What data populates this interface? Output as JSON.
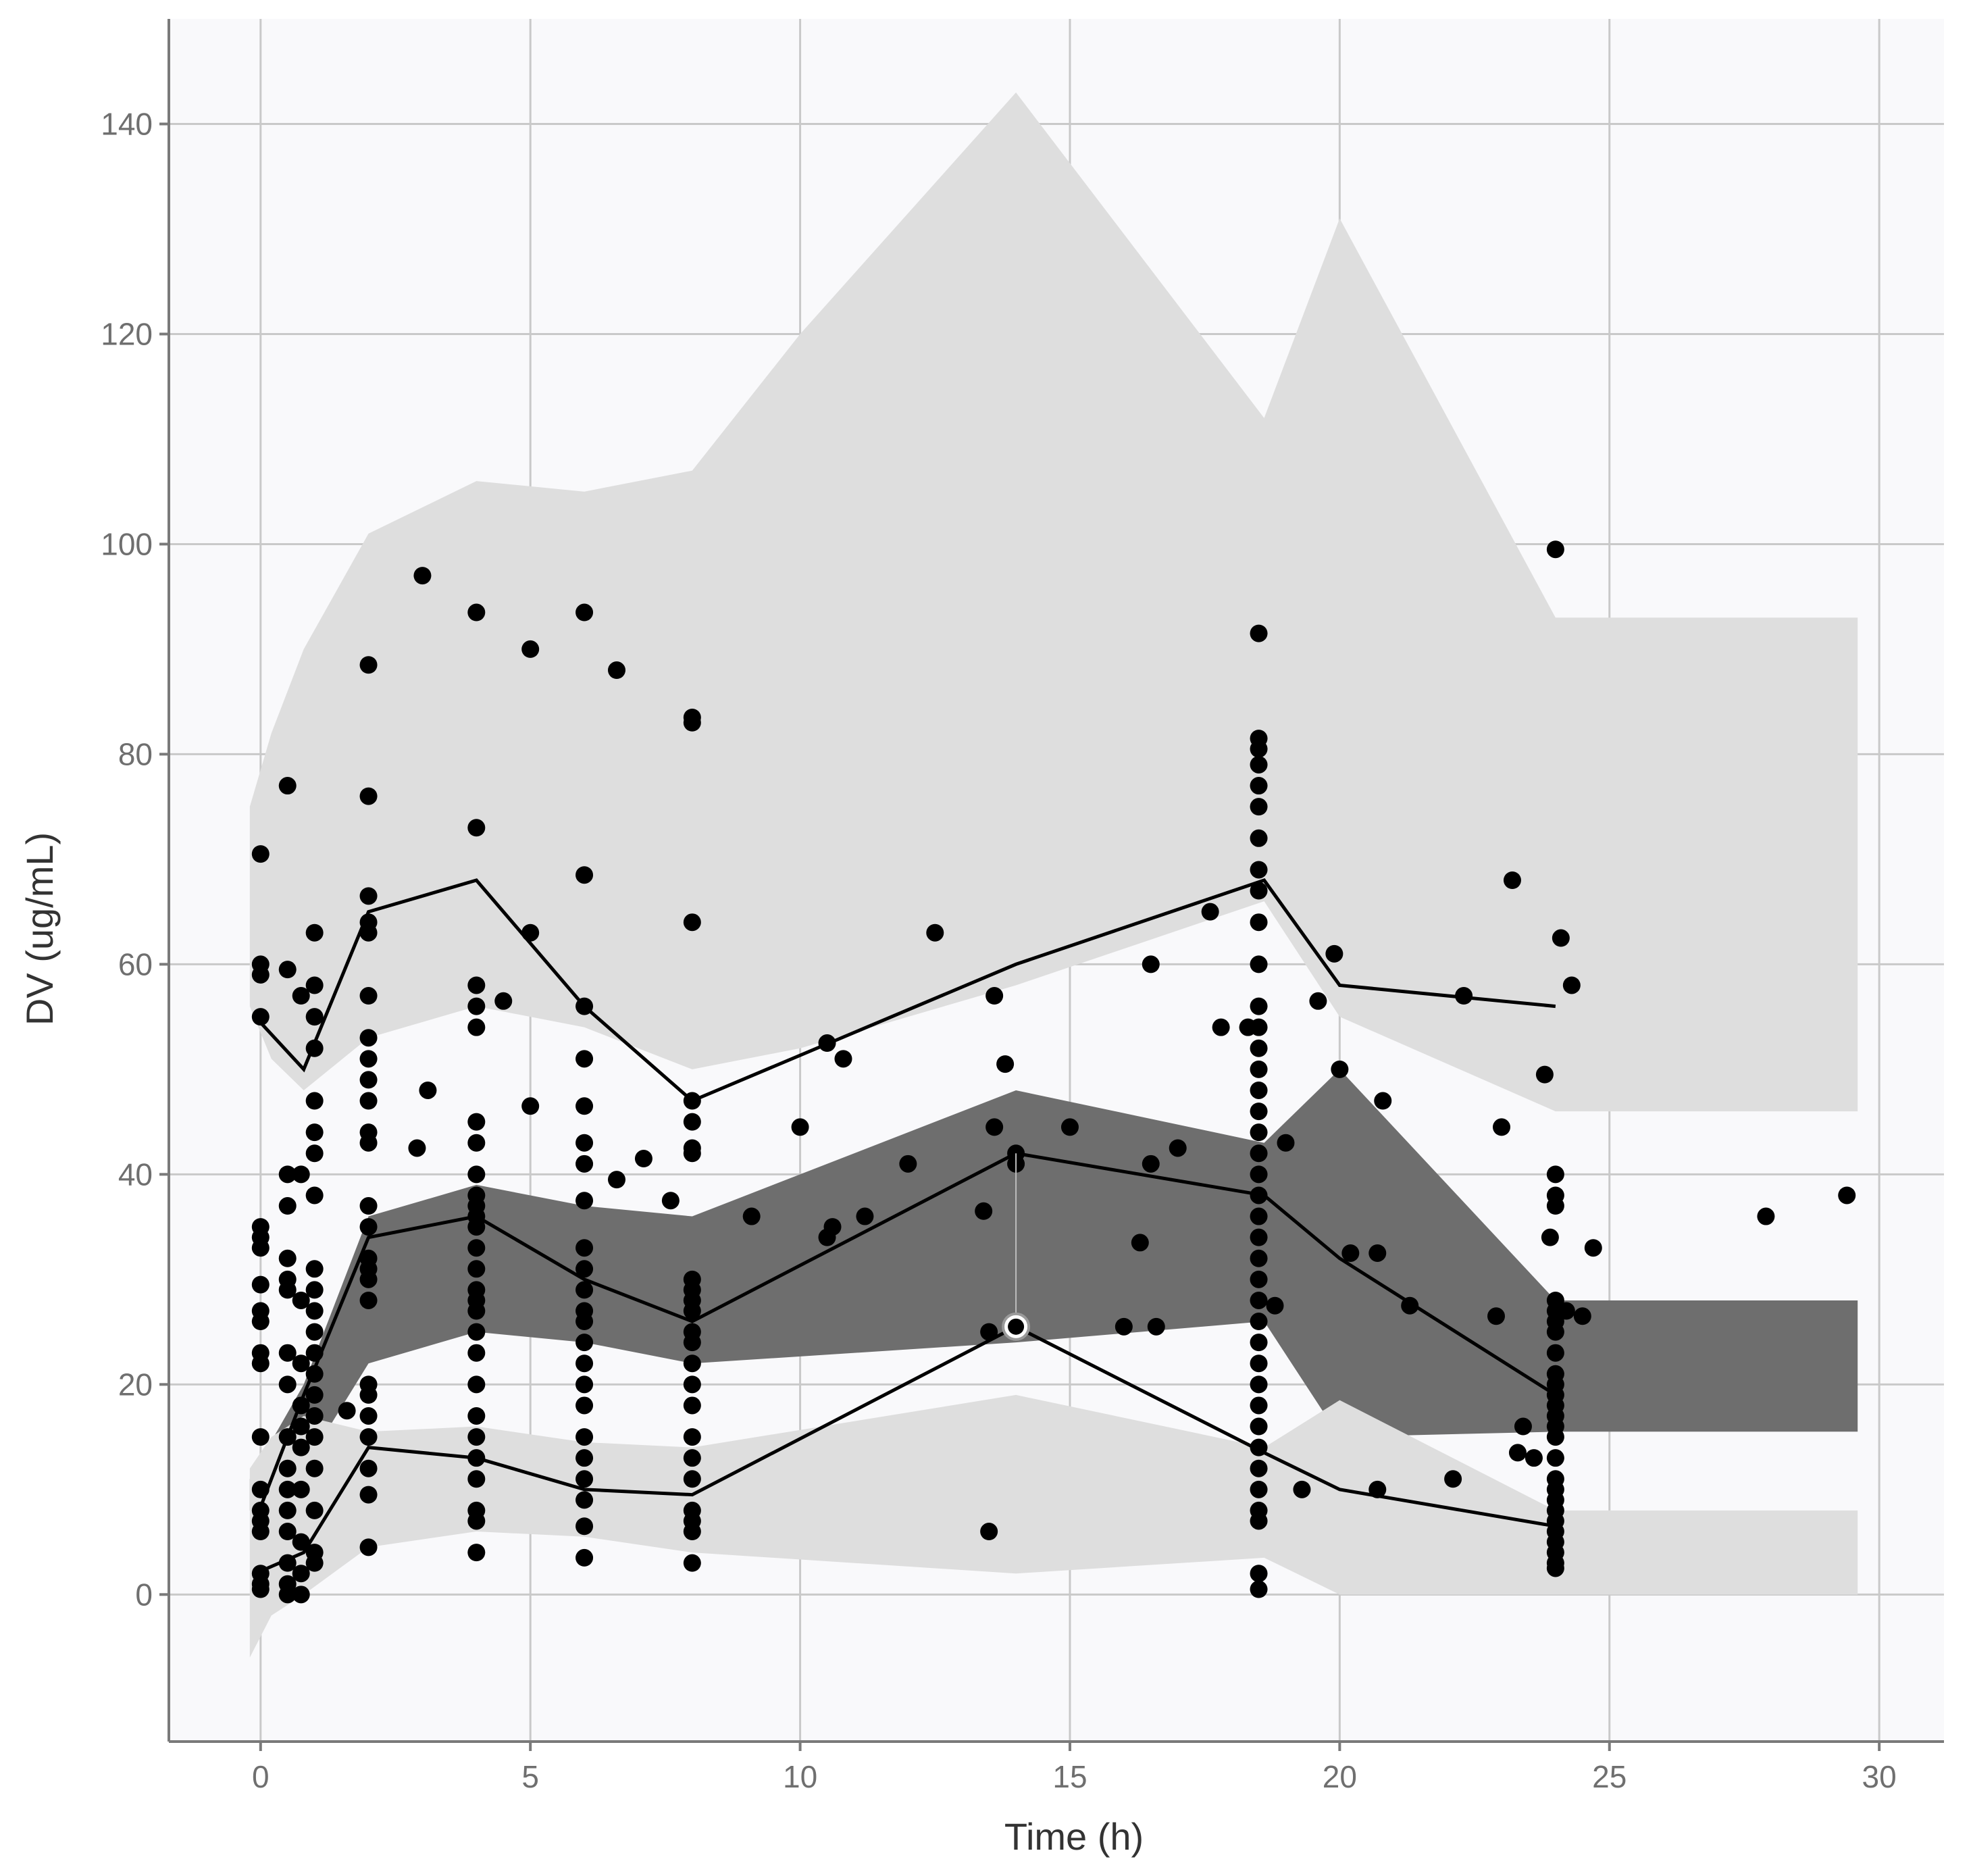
{
  "chart_data": {
    "type": "vpc",
    "title": "",
    "xlabel": "Time (h)",
    "ylabel": "DV (ug/mL)",
    "xlim": [
      -1.7,
      31.2
    ],
    "ylim": [
      -14,
      150
    ],
    "x_ticks": [
      0,
      5,
      10,
      15,
      20,
      25,
      30
    ],
    "y_ticks": [
      0,
      20,
      40,
      60,
      80,
      100,
      120,
      140
    ],
    "x_tick_labels": [
      "0",
      "5",
      "10",
      "15",
      "20",
      "25",
      "30"
    ],
    "y_tick_labels": [
      "0",
      "20",
      "40",
      "60",
      "80",
      "100",
      "120",
      "140"
    ],
    "colors": {
      "panel_background": "#f9f9fb",
      "outer_pi_band": "#dedede",
      "median_pi_band": "#6e6e6e",
      "observed_lines": "#000000",
      "points": "#000000"
    },
    "bands": [
      {
        "name": "upper-percentile-prediction-interval",
        "x": [
          -0.2,
          0.2,
          0.8,
          2,
          4,
          6,
          8,
          10,
          14,
          18.6,
          20,
          24,
          29.6
        ],
        "lower": [
          56,
          51,
          48,
          53,
          56,
          54,
          50,
          52,
          58,
          66,
          55,
          46,
          46
        ],
        "upper": [
          75,
          82,
          90,
          101,
          106,
          105,
          107,
          120,
          143,
          112,
          131,
          93,
          93
        ]
      },
      {
        "name": "median-prediction-interval",
        "x": [
          -0.2,
          0.8,
          2,
          4,
          6,
          8,
          14,
          18.6,
          20,
          24,
          29.6
        ],
        "lower": [
          8,
          12,
          22,
          25,
          24,
          22,
          24,
          26,
          15,
          15.5,
          15.5
        ],
        "upper": [
          11,
          20,
          36,
          39,
          37,
          36,
          48,
          43,
          50,
          28,
          28
        ]
      },
      {
        "name": "lower-percentile-prediction-interval",
        "x": [
          -0.2,
          0.2,
          0.8,
          2,
          4,
          6,
          8,
          14,
          18.6,
          20,
          24,
          29.6
        ],
        "lower": [
          -6,
          -2,
          0,
          4.5,
          6,
          5.5,
          4,
          2,
          3.5,
          0,
          0,
          0
        ],
        "upper": [
          12,
          15,
          17,
          15.5,
          16,
          14.5,
          14,
          19,
          14,
          18.5,
          8,
          8
        ]
      }
    ],
    "series": [
      {
        "name": "observed-upper-percentile",
        "x": [
          -0.1,
          0.8,
          2,
          4,
          6,
          8,
          14,
          18.6,
          20,
          24
        ],
        "y": [
          55,
          50,
          65,
          68,
          56,
          47,
          60,
          68,
          58,
          56
        ]
      },
      {
        "name": "observed-median",
        "x": [
          -0.1,
          0.8,
          2,
          4,
          6,
          8,
          14,
          18.6,
          20,
          24
        ],
        "y": [
          7,
          19,
          34,
          36,
          30,
          26,
          42,
          38,
          32,
          19
        ]
      },
      {
        "name": "observed-lower-percentile",
        "x": [
          -0.1,
          0.8,
          2,
          4,
          6,
          8,
          14,
          18.6,
          20,
          24
        ],
        "y": [
          2,
          4,
          14,
          13,
          10,
          9.5,
          25.5,
          13.5,
          10,
          6.5
        ]
      }
    ],
    "highlighted_point": {
      "x": 14,
      "y": 25.5
    },
    "points": [
      [
        0,
        70.5
      ],
      [
        0,
        60
      ],
      [
        0,
        59
      ],
      [
        0,
        55
      ],
      [
        0,
        35
      ],
      [
        0,
        34
      ],
      [
        0,
        33
      ],
      [
        0,
        29.5
      ],
      [
        0,
        27
      ],
      [
        0,
        26
      ],
      [
        0,
        23
      ],
      [
        0,
        22
      ],
      [
        0,
        15
      ],
      [
        0,
        10
      ],
      [
        0,
        8
      ],
      [
        0,
        7
      ],
      [
        0,
        6
      ],
      [
        0,
        2
      ],
      [
        0,
        1
      ],
      [
        0,
        0.5
      ],
      [
        0.5,
        77
      ],
      [
        0.5,
        59.5
      ],
      [
        0.5,
        40
      ],
      [
        0.5,
        37
      ],
      [
        0.5,
        32
      ],
      [
        0.5,
        30
      ],
      [
        0.5,
        29
      ],
      [
        0.5,
        23
      ],
      [
        0.5,
        20
      ],
      [
        0.5,
        15
      ],
      [
        0.5,
        12
      ],
      [
        0.5,
        10
      ],
      [
        0.5,
        8
      ],
      [
        0.5,
        6
      ],
      [
        0.5,
        3
      ],
      [
        0.5,
        1
      ],
      [
        0.5,
        0
      ],
      [
        0.75,
        57
      ],
      [
        0.75,
        40
      ],
      [
        0.75,
        28
      ],
      [
        0.75,
        22
      ],
      [
        0.75,
        18
      ],
      [
        0.75,
        16
      ],
      [
        0.75,
        14
      ],
      [
        0.75,
        10
      ],
      [
        0.75,
        5
      ],
      [
        0.75,
        2
      ],
      [
        0.75,
        0
      ],
      [
        1,
        63
      ],
      [
        1,
        58
      ],
      [
        1,
        55
      ],
      [
        1,
        52
      ],
      [
        1,
        47
      ],
      [
        1,
        44
      ],
      [
        1,
        42
      ],
      [
        1,
        38
      ],
      [
        1,
        31
      ],
      [
        1,
        29
      ],
      [
        1,
        27
      ],
      [
        1,
        25
      ],
      [
        1,
        23
      ],
      [
        1,
        21
      ],
      [
        1,
        19
      ],
      [
        1,
        17
      ],
      [
        1,
        15
      ],
      [
        1,
        12
      ],
      [
        1,
        8
      ],
      [
        1,
        4
      ],
      [
        1,
        3
      ],
      [
        1.6,
        17.5
      ],
      [
        2,
        88.5
      ],
      [
        2,
        76
      ],
      [
        2,
        66.5
      ],
      [
        2,
        64
      ],
      [
        2,
        63
      ],
      [
        2,
        57
      ],
      [
        2,
        53
      ],
      [
        2,
        51
      ],
      [
        2,
        49
      ],
      [
        2,
        47
      ],
      [
        2,
        44
      ],
      [
        2,
        43
      ],
      [
        2,
        37
      ],
      [
        2,
        35
      ],
      [
        2,
        32
      ],
      [
        2,
        31
      ],
      [
        2,
        30
      ],
      [
        2,
        28
      ],
      [
        2,
        20
      ],
      [
        2,
        19
      ],
      [
        2,
        17
      ],
      [
        2,
        15
      ],
      [
        2,
        12
      ],
      [
        2,
        9.5
      ],
      [
        2,
        4.5
      ],
      [
        3,
        97
      ],
      [
        3.1,
        48
      ],
      [
        2.9,
        42.5
      ],
      [
        4,
        93.5
      ],
      [
        4,
        73
      ],
      [
        4,
        58
      ],
      [
        4,
        56
      ],
      [
        4,
        54
      ],
      [
        4,
        45
      ],
      [
        4,
        43
      ],
      [
        4,
        40
      ],
      [
        4,
        38
      ],
      [
        4,
        37
      ],
      [
        4,
        36
      ],
      [
        4,
        35
      ],
      [
        4,
        33
      ],
      [
        4,
        31
      ],
      [
        4,
        29
      ],
      [
        4,
        28
      ],
      [
        4,
        27
      ],
      [
        4,
        25
      ],
      [
        4,
        23
      ],
      [
        4,
        20
      ],
      [
        4,
        17
      ],
      [
        4,
        15
      ],
      [
        4,
        13
      ],
      [
        4,
        11
      ],
      [
        4,
        8
      ],
      [
        4,
        7
      ],
      [
        4,
        4
      ],
      [
        4.5,
        56.5
      ],
      [
        5,
        90
      ],
      [
        5,
        63
      ],
      [
        5,
        46.5
      ],
      [
        6,
        93.5
      ],
      [
        6,
        68.5
      ],
      [
        6,
        56
      ],
      [
        6,
        51
      ],
      [
        6,
        46.5
      ],
      [
        6,
        43
      ],
      [
        6,
        41
      ],
      [
        6,
        37.5
      ],
      [
        6,
        33
      ],
      [
        6,
        31
      ],
      [
        6,
        29
      ],
      [
        6,
        27
      ],
      [
        6,
        26
      ],
      [
        6,
        24
      ],
      [
        6,
        22
      ],
      [
        6,
        20
      ],
      [
        6,
        18
      ],
      [
        6,
        15
      ],
      [
        6,
        13
      ],
      [
        6,
        11
      ],
      [
        6,
        9
      ],
      [
        6,
        6.5
      ],
      [
        6,
        3.5
      ],
      [
        6.6,
        88
      ],
      [
        6.6,
        39.5
      ],
      [
        7.1,
        41.5
      ],
      [
        7.6,
        37.5
      ],
      [
        8,
        83.5
      ],
      [
        8,
        83
      ],
      [
        8,
        64
      ],
      [
        8,
        47
      ],
      [
        8,
        45
      ],
      [
        8,
        42.5
      ],
      [
        8,
        42
      ],
      [
        8,
        30
      ],
      [
        8,
        29
      ],
      [
        8,
        28
      ],
      [
        8,
        27
      ],
      [
        8,
        25
      ],
      [
        8,
        24
      ],
      [
        8,
        22
      ],
      [
        8,
        20
      ],
      [
        8,
        18
      ],
      [
        8,
        15
      ],
      [
        8,
        13
      ],
      [
        8,
        11
      ],
      [
        8,
        8
      ],
      [
        8,
        7
      ],
      [
        8,
        6
      ],
      [
        8,
        3
      ],
      [
        9.1,
        36
      ],
      [
        10,
        44.5
      ],
      [
        10.5,
        52.5
      ],
      [
        10.5,
        34
      ],
      [
        10.6,
        35
      ],
      [
        10.8,
        51
      ],
      [
        11.2,
        36
      ],
      [
        12,
        41
      ],
      [
        12.5,
        63
      ],
      [
        13.4,
        36.5
      ],
      [
        13.5,
        6
      ],
      [
        13.5,
        25
      ],
      [
        13.6,
        57
      ],
      [
        13.6,
        44.5
      ],
      [
        13.8,
        50.5
      ],
      [
        14,
        42
      ],
      [
        14,
        41
      ],
      [
        15,
        44.5
      ],
      [
        16,
        25.5
      ],
      [
        16.3,
        33.5
      ],
      [
        16.5,
        60
      ],
      [
        16.5,
        41
      ],
      [
        16.6,
        25.5
      ],
      [
        17,
        42.5
      ],
      [
        17.6,
        65
      ],
      [
        17.8,
        54
      ],
      [
        18.3,
        54
      ],
      [
        18.5,
        91.5
      ],
      [
        18.5,
        81.5
      ],
      [
        18.5,
        80.5
      ],
      [
        18.5,
        79
      ],
      [
        18.5,
        77
      ],
      [
        18.5,
        75
      ],
      [
        18.5,
        72
      ],
      [
        18.5,
        69
      ],
      [
        18.5,
        67
      ],
      [
        18.5,
        64
      ],
      [
        18.5,
        60
      ],
      [
        18.5,
        56
      ],
      [
        18.5,
        54
      ],
      [
        18.5,
        52
      ],
      [
        18.5,
        50
      ],
      [
        18.5,
        48
      ],
      [
        18.5,
        46
      ],
      [
        18.5,
        44
      ],
      [
        18.5,
        42
      ],
      [
        18.5,
        40
      ],
      [
        18.5,
        38
      ],
      [
        18.5,
        36
      ],
      [
        18.5,
        34
      ],
      [
        18.5,
        32
      ],
      [
        18.5,
        30
      ],
      [
        18.5,
        28
      ],
      [
        18.5,
        26
      ],
      [
        18.5,
        24
      ],
      [
        18.5,
        22
      ],
      [
        18.5,
        20
      ],
      [
        18.5,
        18
      ],
      [
        18.5,
        16
      ],
      [
        18.5,
        14
      ],
      [
        18.5,
        12
      ],
      [
        18.5,
        10
      ],
      [
        18.5,
        8
      ],
      [
        18.5,
        7
      ],
      [
        18.5,
        2
      ],
      [
        18.5,
        0.5
      ],
      [
        18.8,
        27.5
      ],
      [
        19,
        43
      ],
      [
        19.3,
        10
      ],
      [
        19.6,
        56.5
      ],
      [
        19.9,
        61
      ],
      [
        20,
        50
      ],
      [
        20.2,
        32.5
      ],
      [
        20.7,
        32.5
      ],
      [
        20.8,
        47
      ],
      [
        20.7,
        10
      ],
      [
        21.3,
        27.5
      ],
      [
        22.1,
        11
      ],
      [
        22.3,
        57
      ],
      [
        22.9,
        26.5
      ],
      [
        23,
        44.5
      ],
      [
        23.2,
        68
      ],
      [
        23.3,
        13.5
      ],
      [
        23.4,
        16
      ],
      [
        23.6,
        13
      ],
      [
        23.8,
        49.5
      ],
      [
        23.9,
        34
      ],
      [
        24,
        99.5
      ],
      [
        24,
        40
      ],
      [
        24,
        38
      ],
      [
        24,
        37
      ],
      [
        24,
        28
      ],
      [
        24,
        27
      ],
      [
        24,
        26
      ],
      [
        24,
        25
      ],
      [
        24,
        23
      ],
      [
        24,
        21
      ],
      [
        24,
        20
      ],
      [
        24,
        19
      ],
      [
        24,
        18
      ],
      [
        24,
        17
      ],
      [
        24,
        16
      ],
      [
        24,
        15
      ],
      [
        24,
        13
      ],
      [
        24,
        11
      ],
      [
        24,
        10
      ],
      [
        24,
        9
      ],
      [
        24,
        8
      ],
      [
        24,
        7
      ],
      [
        24,
        6
      ],
      [
        24,
        5
      ],
      [
        24,
        4
      ],
      [
        24,
        3
      ],
      [
        24,
        2.5
      ],
      [
        24.1,
        62.5
      ],
      [
        24.2,
        27
      ],
      [
        24.3,
        58
      ],
      [
        24.5,
        26.5
      ],
      [
        24.7,
        33
      ],
      [
        27.9,
        36
      ],
      [
        29.4,
        38
      ]
    ]
  }
}
